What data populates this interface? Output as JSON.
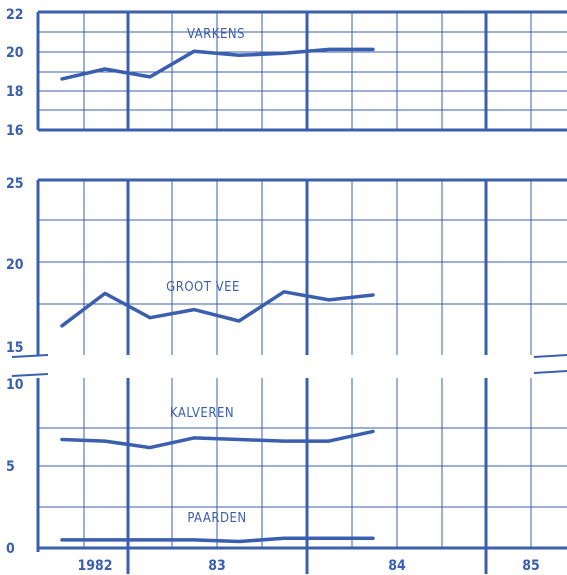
{
  "color": "#3a5fae",
  "chart_data": [
    {
      "type": "line",
      "x_tick_labels": [
        "1982",
        "83",
        "84",
        "85"
      ],
      "ylim": [
        16,
        22
      ],
      "y_ticks": [
        "16",
        "18",
        "20",
        "22"
      ],
      "series": [
        {
          "name": "VARKENS",
          "x": [
            0,
            1,
            2,
            3,
            4,
            5,
            6,
            7
          ],
          "values": [
            18.6,
            19.1,
            18.7,
            20.0,
            19.8,
            19.9,
            20.1,
            20.1
          ]
        }
      ]
    },
    {
      "type": "line",
      "x_tick_labels": [
        "1982",
        "83",
        "84",
        "85"
      ],
      "ylim": [
        14.2,
        25
      ],
      "y_ticks": [
        "15",
        "20",
        "25"
      ],
      "series": [
        {
          "name": "GROOT VEE",
          "x": [
            0,
            1,
            2,
            3,
            4,
            5,
            6,
            7
          ],
          "values": [
            16.0,
            18.0,
            16.5,
            17.0,
            16.3,
            18.1,
            17.6,
            17.9
          ]
        }
      ]
    },
    {
      "type": "line",
      "x_tick_labels": [
        "1982",
        "83",
        "84",
        "85"
      ],
      "ylim": [
        0,
        10.5
      ],
      "y_ticks": [
        "0",
        "5",
        "10"
      ],
      "series": [
        {
          "name": "KALVEREN",
          "x": [
            0,
            1,
            2,
            3,
            4,
            5,
            6,
            7
          ],
          "values": [
            6.7,
            6.6,
            6.2,
            6.8,
            6.7,
            6.6,
            6.6,
            7.2
          ]
        },
        {
          "name": "PAARDEN",
          "x": [
            0,
            1,
            2,
            3,
            4,
            5,
            6,
            7
          ],
          "values": [
            0.5,
            0.5,
            0.5,
            0.5,
            0.4,
            0.6,
            0.6,
            0.6
          ]
        }
      ]
    }
  ]
}
